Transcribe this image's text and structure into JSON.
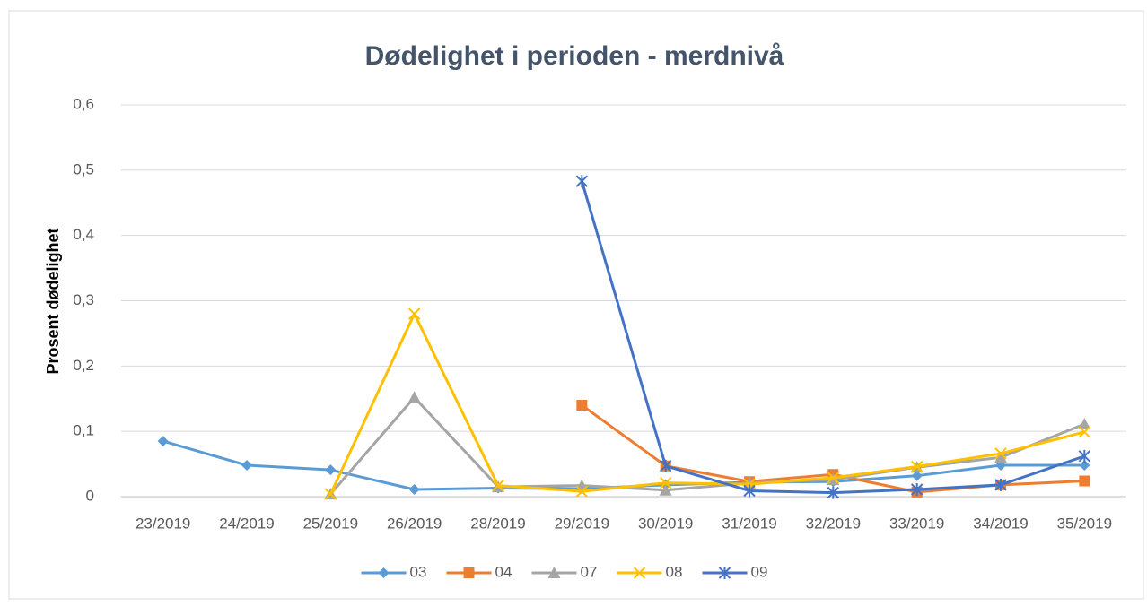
{
  "chart_data": {
    "type": "line",
    "title": "Dødelighet i perioden - merdnivå",
    "y_label": "Prosent dødelighet",
    "categories": [
      "23/2019",
      "24/2019",
      "25/2019",
      "26/2019",
      "28/2019",
      "29/2019",
      "30/2019",
      "31/2019",
      "32/2019",
      "33/2019",
      "34/2019",
      "35/2019"
    ],
    "series": [
      {
        "name": "03",
        "color": "#5b9bd5",
        "marker": "diamond",
        "values": [
          0.085,
          0.048,
          0.041,
          0.011,
          0.013,
          0.012,
          0.018,
          0.022,
          0.023,
          0.032,
          0.048,
          0.048
        ]
      },
      {
        "name": "04",
        "color": "#ed7d31",
        "marker": "square",
        "values": [
          null,
          null,
          null,
          null,
          null,
          0.14,
          0.047,
          0.023,
          0.034,
          0.007,
          0.018,
          0.024
        ]
      },
      {
        "name": "07",
        "color": "#a5a5a5",
        "marker": "triangle",
        "values": [
          null,
          null,
          0.004,
          0.152,
          0.015,
          0.017,
          0.01,
          0.021,
          0.026,
          0.045,
          0.06,
          0.111
        ]
      },
      {
        "name": "08",
        "color": "#ffc000",
        "marker": "x",
        "values": [
          null,
          null,
          0.004,
          0.28,
          0.017,
          0.008,
          0.021,
          0.019,
          0.029,
          0.046,
          0.066,
          0.099
        ]
      },
      {
        "name": "09",
        "color": "#4472c4",
        "marker": "star",
        "values": [
          null,
          null,
          null,
          null,
          null,
          0.483,
          0.047,
          0.009,
          0.006,
          0.011,
          0.018,
          0.062
        ]
      }
    ],
    "ylim": [
      0,
      0.6
    ],
    "yticks": [
      0,
      {
        "value": 0.1,
        "label": "0,1"
      },
      {
        "value": 0.2,
        "label": "0,2"
      },
      {
        "value": 0.3,
        "label": "0,3"
      },
      {
        "value": 0.4,
        "label": "0,4"
      },
      {
        "value": 0.5,
        "label": "0,5"
      },
      {
        "value": 0.6,
        "label": "0,6"
      }
    ],
    "grid": true,
    "legend": "bottom"
  }
}
